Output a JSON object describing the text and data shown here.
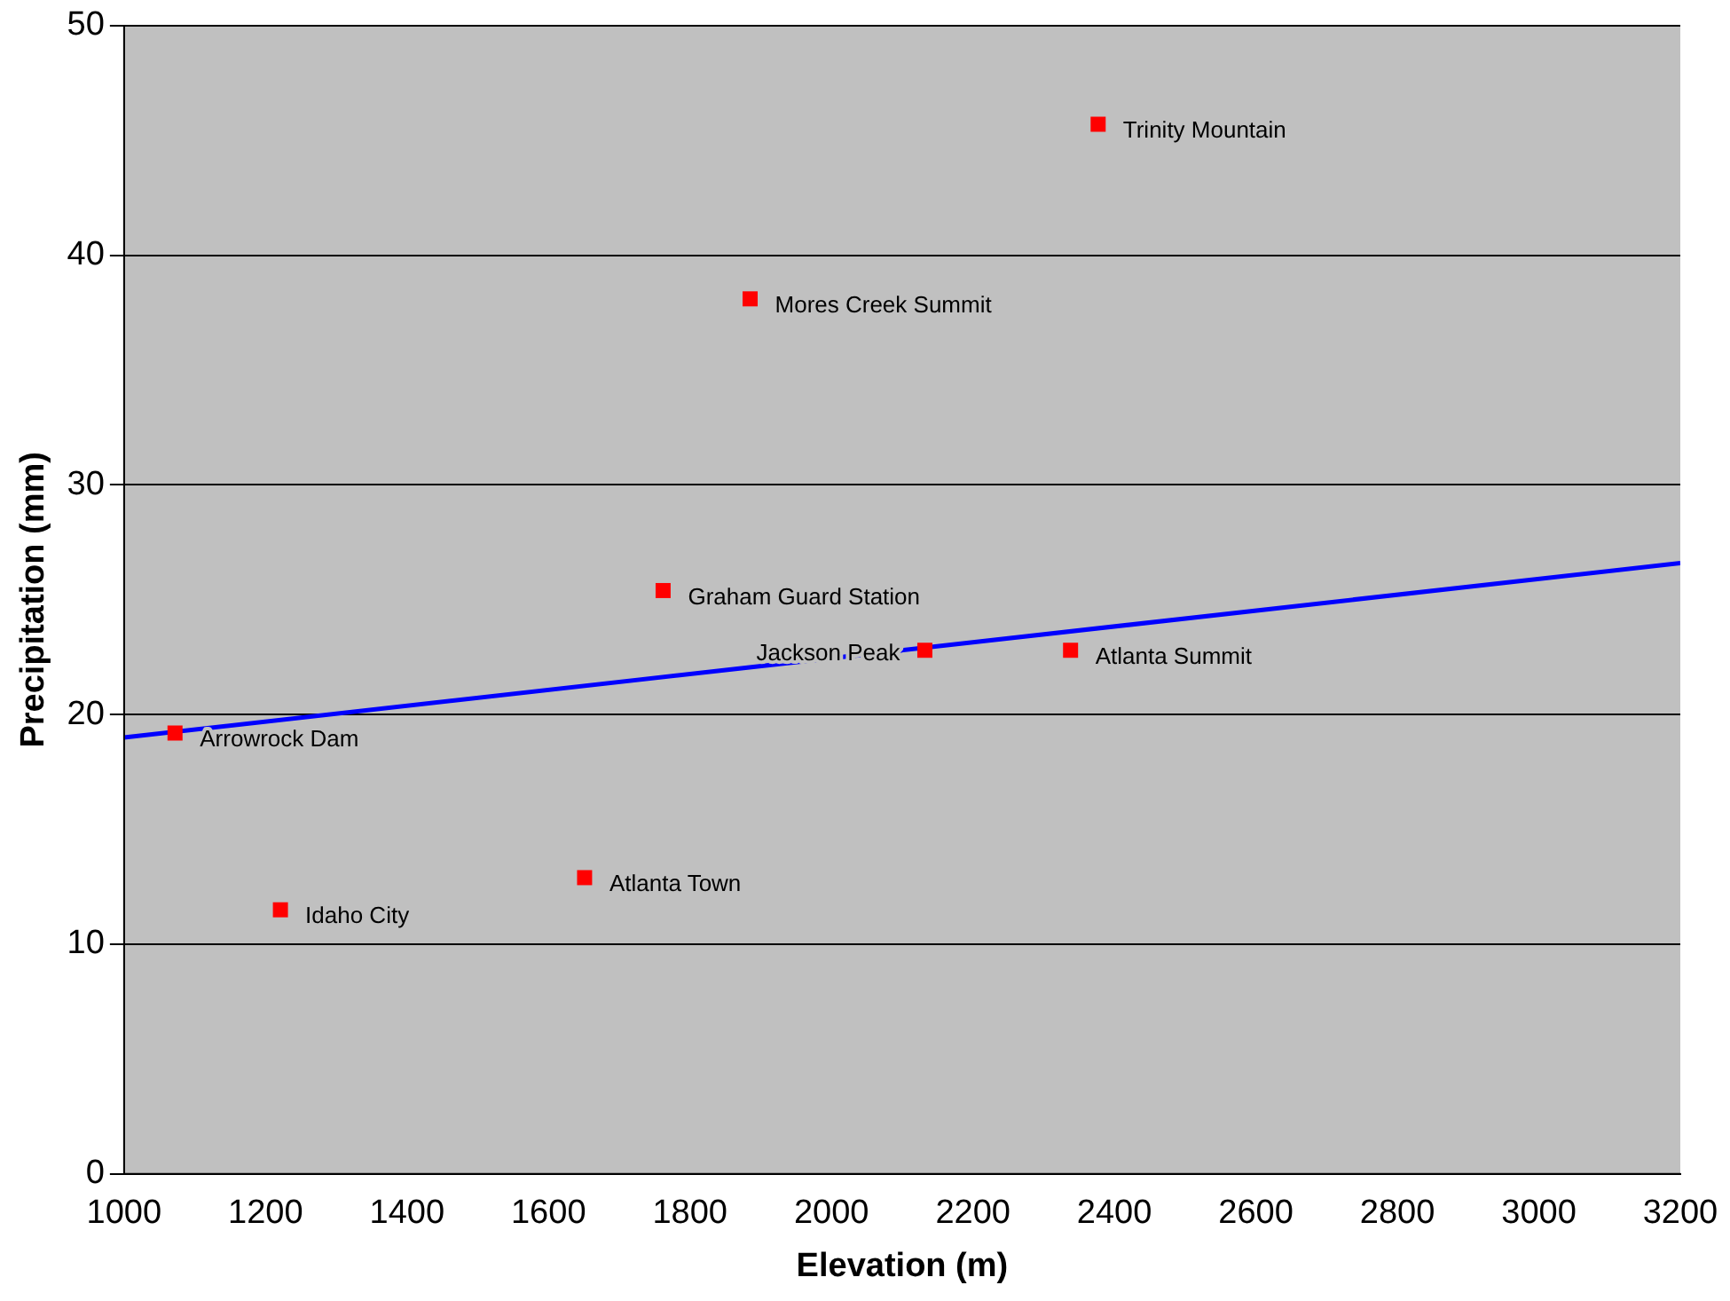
{
  "chart_data": {
    "type": "scatter",
    "xlabel": "Elevation (m)",
    "ylabel": "Precipitation (mm)",
    "xlim": [
      1000,
      3200
    ],
    "xticks": [
      1000,
      1200,
      1400,
      1600,
      1800,
      2000,
      2200,
      2400,
      2600,
      2800,
      3000,
      3200
    ],
    "ylim": [
      0,
      50
    ],
    "yticks": [
      0,
      10,
      20,
      30,
      40,
      50
    ],
    "grid": "y",
    "legend": false,
    "series": [
      {
        "type": "scatter",
        "marker": "square",
        "color": "#ff0000",
        "x": [
          1072,
          1221,
          1651,
          1762,
          1885,
          2132,
          2338,
          2377
        ],
        "values": [
          19.2,
          11.5,
          12.9,
          25.4,
          38.1,
          22.8,
          22.8,
          45.7
        ]
      },
      {
        "type": "line",
        "marker": "none",
        "color": "#0000ff",
        "x": [
          1000,
          3200
        ],
        "values": [
          19.0,
          26.6
        ]
      }
    ],
    "annotations": [
      {
        "text": "Arrowrock Dam",
        "x": 1072,
        "y": 19.2
      },
      {
        "text": "Idaho City",
        "x": 1221,
        "y": 11.5
      },
      {
        "text": "Atlanta Town",
        "x": 1651,
        "y": 12.9
      },
      {
        "text": "Graham Guard Station",
        "x": 1762,
        "y": 25.4
      },
      {
        "text": "Mores Creek Summit",
        "x": 1885,
        "y": 38.1
      },
      {
        "text": "Jackson Peak",
        "x": 2132,
        "y": 22.8
      },
      {
        "text": "Atlanta Summit",
        "x": 2338,
        "y": 22.8
      },
      {
        "text": "Trinity Mountain",
        "x": 2377,
        "y": 45.7
      }
    ]
  }
}
